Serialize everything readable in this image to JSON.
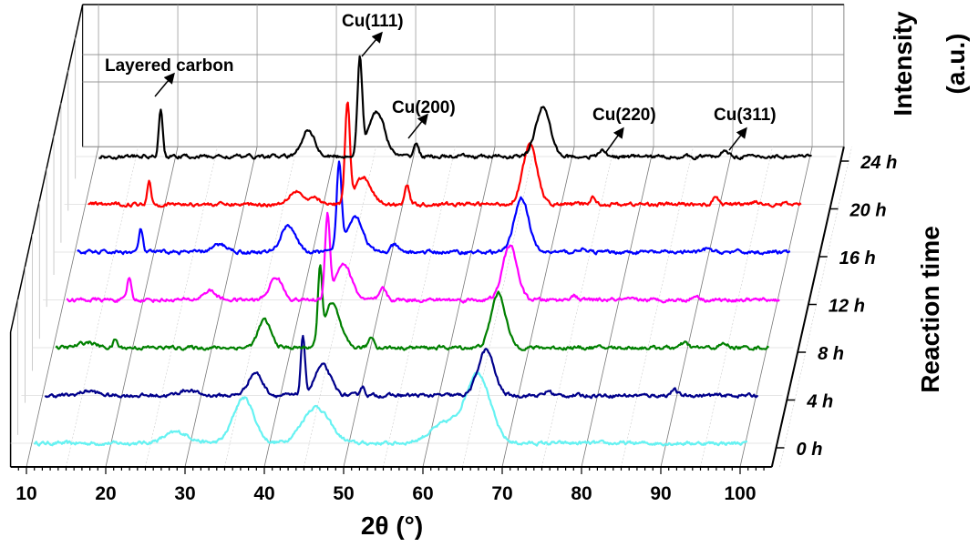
{
  "chart_data": {
    "type": "line",
    "subtype": "3d-waterfall",
    "xlabel": "2θ (°)",
    "ylabel": "Intensity (a.u.)",
    "zlabel": "Reaction time",
    "xlim": [
      8,
      104
    ],
    "xticks": [
      "10",
      "20",
      "30",
      "40",
      "50",
      "60",
      "70",
      "80",
      "90",
      "100"
    ],
    "xtick_values": [
      10,
      20,
      30,
      40,
      50,
      60,
      70,
      80,
      90,
      100
    ],
    "grid": true,
    "annotations": [
      {
        "text": "Layered carbon",
        "x": 18.8,
        "series": "24 h"
      },
      {
        "text": "Cu(111)",
        "x": 43.9,
        "series": "24 h"
      },
      {
        "text": "Cu(200)",
        "x": 51.0,
        "series": "24 h"
      },
      {
        "text": "Cu(220)",
        "x": 74.5,
        "series": "24 h"
      },
      {
        "text": "Cu(311)",
        "x": 90.0,
        "series": "24 h"
      }
    ],
    "series": [
      {
        "name": "0 h",
        "color": "#66f2f2",
        "peaks": [
          [
            29,
            12,
            1.6
          ],
          [
            37.4,
            50,
            1.3
          ],
          [
            46.5,
            40,
            1.7
          ],
          [
            63,
            22,
            2.0
          ],
          [
            67,
            75,
            1.5
          ]
        ]
      },
      {
        "name": "4 h",
        "color": "#00008b",
        "peaks": [
          [
            16.5,
            5,
            1.0
          ],
          [
            29,
            6,
            1.0
          ],
          [
            37.5,
            25,
            0.9
          ],
          [
            43.5,
            65,
            0.25
          ],
          [
            46,
            33,
            1.0
          ],
          [
            51,
            10,
            0.3
          ],
          [
            66.6,
            50,
            1.0
          ],
          [
            74.5,
            5,
            0.4
          ],
          [
            90.3,
            6,
            0.4
          ]
        ]
      },
      {
        "name": "8 h",
        "color": "#008000",
        "peaks": [
          [
            15,
            6,
            1.0
          ],
          [
            18.5,
            9,
            0.25
          ],
          [
            37.3,
            30,
            0.8
          ],
          [
            44.3,
            75,
            0.25
          ],
          [
            45.8,
            48,
            1.0
          ],
          [
            50.8,
            12,
            0.35
          ],
          [
            66.8,
            60,
            0.9
          ],
          [
            90.3,
            5,
            0.4
          ],
          [
            95.3,
            4,
            0.5
          ]
        ]
      },
      {
        "name": "12 h",
        "color": "#ff00ff",
        "peaks": [
          [
            18.9,
            25,
            0.25
          ],
          [
            29,
            10,
            0.8
          ],
          [
            37.4,
            25,
            0.8
          ],
          [
            43.9,
            90,
            0.3
          ],
          [
            45.9,
            40,
            1.0
          ],
          [
            50.9,
            12,
            0.4
          ],
          [
            66.9,
            60,
            0.9
          ],
          [
            74.9,
            5,
            0.4
          ],
          [
            90.4,
            5,
            0.4
          ]
        ]
      },
      {
        "name": "16 h",
        "color": "#0000ff",
        "peaks": [
          [
            19,
            25,
            0.25
          ],
          [
            29,
            8,
            1.0
          ],
          [
            37.6,
            30,
            0.9
          ],
          [
            44,
            95,
            0.3
          ],
          [
            46,
            40,
            1.0
          ],
          [
            51,
            8,
            0.4
          ],
          [
            67,
            60,
            0.9
          ],
          [
            74.5,
            4,
            0.4
          ],
          [
            90.5,
            4,
            0.4
          ]
        ]
      },
      {
        "name": "20 h",
        "color": "#ff0000",
        "peaks": [
          [
            18.7,
            25,
            0.25
          ],
          [
            37.2,
            15,
            0.9
          ],
          [
            39.7,
            7,
            0.5
          ],
          [
            43.7,
            110,
            0.3
          ],
          [
            45.7,
            30,
            1.0
          ],
          [
            51.2,
            22,
            0.3
          ],
          [
            66.7,
            65,
            0.9
          ],
          [
            74.7,
            8,
            0.35
          ],
          [
            90.2,
            8,
            0.35
          ],
          [
            95.2,
            4,
            0.4
          ]
        ]
      },
      {
        "name": "24 h",
        "color": "#000000",
        "peaks": [
          [
            18.8,
            50,
            0.25
          ],
          [
            37.4,
            30,
            0.8
          ],
          [
            43.9,
            105,
            0.3
          ],
          [
            46,
            50,
            1.0
          ],
          [
            51,
            15,
            0.3
          ],
          [
            67,
            55,
            0.9
          ],
          [
            74.5,
            8,
            0.35
          ],
          [
            90,
            8,
            0.35
          ]
        ]
      }
    ]
  }
}
